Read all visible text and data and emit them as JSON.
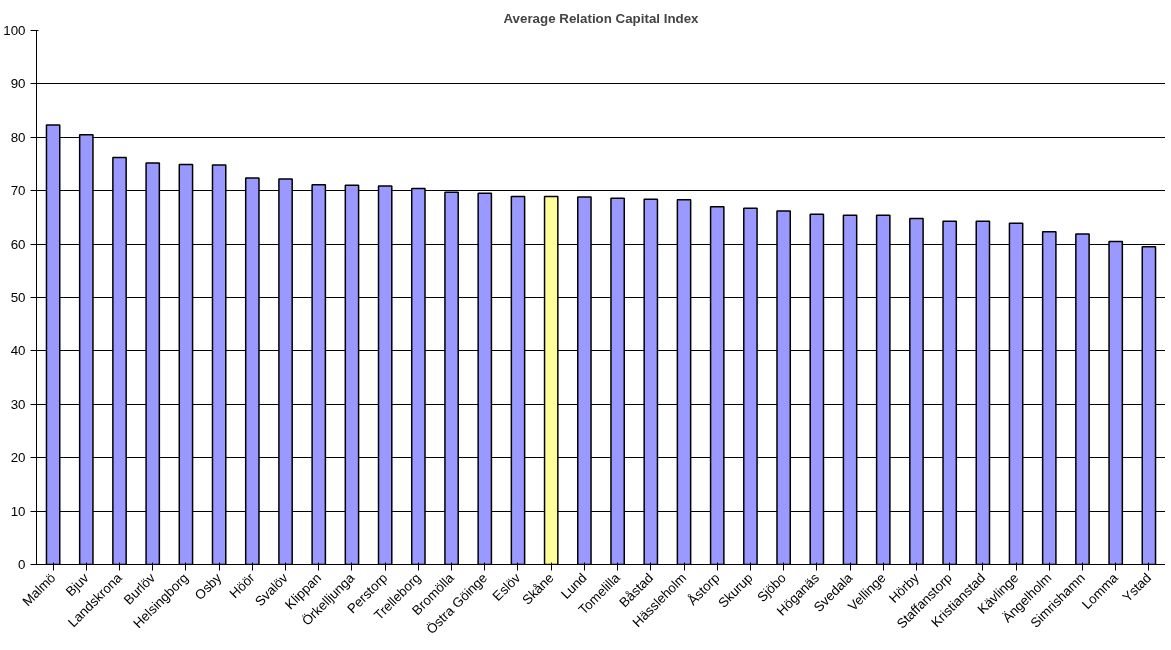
{
  "chart_data": {
    "type": "bar",
    "title": "Average Relation Capital Index",
    "categories": [
      "Malmö",
      "Bjuv",
      "Landskrona",
      "Burlöv",
      "Helsingborg",
      "Osby",
      "Höör",
      "Svalöv",
      "Klippan",
      "Örkelljunga",
      "Perstorp",
      "Trelleborg",
      "Bromölla",
      "Östra Göinge",
      "Eslöv",
      "Skåne",
      "Lund",
      "Tomelilla",
      "Båstad",
      "Hässleholm",
      "Åstorp",
      "Skurup",
      "Sjöbo",
      "Höganäs",
      "Svedala",
      "Vellinge",
      "Hörby",
      "Staffanstorp",
      "Kristianstad",
      "Kävlinge",
      "Ängelholm",
      "Simrishamn",
      "Lomma",
      "Ystad"
    ],
    "values": [
      82.3,
      80.5,
      76.2,
      75.2,
      74.9,
      74.8,
      72.4,
      72.2,
      71.1,
      71.0,
      70.9,
      70.4,
      69.7,
      69.5,
      68.9,
      68.9,
      68.8,
      68.6,
      68.4,
      68.3,
      67.0,
      66.7,
      66.2,
      65.6,
      65.4,
      65.4,
      64.8,
      64.3,
      64.3,
      63.9,
      62.3,
      61.9,
      60.5,
      59.5
    ],
    "colors": [
      "#9999ff",
      "#9999ff",
      "#9999ff",
      "#9999ff",
      "#9999ff",
      "#9999ff",
      "#9999ff",
      "#9999ff",
      "#9999ff",
      "#9999ff",
      "#9999ff",
      "#9999ff",
      "#9999ff",
      "#9999ff",
      "#9999ff",
      "#ffff99",
      "#9999ff",
      "#9999ff",
      "#9999ff",
      "#9999ff",
      "#9999ff",
      "#9999ff",
      "#9999ff",
      "#9999ff",
      "#9999ff",
      "#9999ff",
      "#9999ff",
      "#9999ff",
      "#9999ff",
      "#9999ff",
      "#9999ff",
      "#9999ff",
      "#9999ff",
      "#9999ff"
    ],
    "ylim": [
      0,
      100
    ],
    "yticks": [
      0,
      10,
      20,
      30,
      40,
      50,
      60,
      70,
      80,
      90,
      100
    ],
    "grid": "y"
  }
}
